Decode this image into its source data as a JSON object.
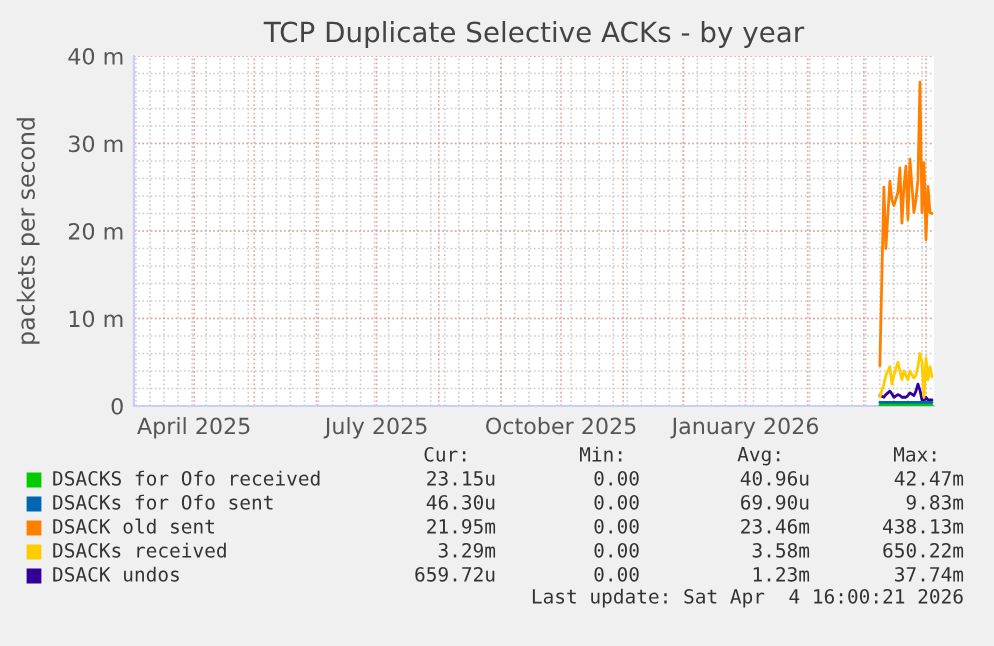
{
  "chart_data": {
    "type": "line",
    "title": "TCP Duplicate Selective ACKs - by year",
    "ylabel": "packets per second",
    "x": [
      "2026-03-09",
      "2026-03-11",
      "2026-03-12",
      "2026-03-14",
      "2026-03-15",
      "2026-03-16",
      "2026-03-18",
      "2026-03-19",
      "2026-03-20",
      "2026-03-21",
      "2026-03-22",
      "2026-03-23",
      "2026-03-24",
      "2026-03-26",
      "2026-03-27",
      "2026-03-28",
      "2026-03-29",
      "2026-03-30",
      "2026-03-31",
      "2026-04-01",
      "2026-04-02",
      "2026-04-03",
      "2026-04-04"
    ],
    "series": [
      {
        "name": "DSACKS for Ofo received",
        "color": "#00cc00",
        "values": [
          0.1,
          0.1,
          0.1,
          0.1,
          0.1,
          0.1,
          0.1,
          0.1,
          0.1,
          0.1,
          0.1,
          0.1,
          0.1,
          0.1,
          0.1,
          0.1,
          0.1,
          0.1,
          0.1,
          0.1,
          0.1,
          0.1,
          0.1
        ]
      },
      {
        "name": "DSACKs for Ofo sent",
        "color": "#0066b3",
        "values": [
          0.4,
          0.4,
          0.4,
          0.4,
          0.4,
          0.4,
          0.4,
          0.4,
          0.4,
          0.4,
          0.4,
          0.4,
          0.4,
          0.4,
          0.4,
          0.4,
          0.4,
          0.4,
          0.4,
          0.4,
          0.4,
          0.4,
          0.4
        ]
      },
      {
        "name": "DSACK old sent",
        "color": "#ff8000",
        "values": [
          4.6,
          25,
          18,
          25.7,
          23.6,
          22.9,
          24.4,
          27.2,
          20.9,
          25.1,
          27.4,
          21.3,
          28.2,
          22.1,
          23.6,
          25.9,
          37,
          22.1,
          27.8,
          19,
          25.1,
          22.1,
          22
        ]
      },
      {
        "name": "DSACKs received",
        "color": "#ffcc00",
        "values": [
          1,
          2.5,
          3.5,
          4.5,
          2.5,
          3.5,
          5,
          4,
          3,
          4,
          3.5,
          3,
          4,
          3.2,
          3.5,
          4.5,
          6,
          5,
          1,
          5.5,
          3,
          4.5,
          3.3
        ]
      },
      {
        "name": "DSACK undos",
        "color": "#330099",
        "values": [
          1.2,
          1,
          1.3,
          1.7,
          1.4,
          1,
          1.3,
          1.2,
          1,
          1,
          1,
          1.2,
          1.5,
          1.2,
          1.7,
          2.5,
          1.8,
          0.7,
          0.6,
          1,
          0.7,
          0.7,
          0.7
        ]
      }
    ],
    "xlim": [
      "2025-03-02",
      "2026-04-05"
    ],
    "xticks": [
      {
        "value": "2025-04-01",
        "label": "April 2025"
      },
      {
        "value": "2025-07-01",
        "label": "July 2025"
      },
      {
        "value": "2025-10-01",
        "label": "October 2025"
      },
      {
        "value": "2026-01-01",
        "label": "January 2026"
      }
    ],
    "ylim": [
      0,
      40
    ],
    "yticks": [
      0,
      {
        "value": 10,
        "label": "10 m"
      },
      {
        "value": 20,
        "label": "20 m"
      },
      {
        "value": 30,
        "label": "30 m"
      },
      {
        "value": 40,
        "label": "40 m"
      }
    ],
    "grid": true,
    "legend": "bottom",
    "annotations": [
      "Cur:",
      "Min:",
      "Avg:",
      "Max:",
      "23.15u",
      "0.00",
      "40.96u",
      "42.47m",
      "46.30u",
      "0.00",
      "69.90u",
      "9.83m",
      "21.95m",
      "0.00",
      "23.46m",
      "438.13m",
      "3.29m",
      "0.00",
      "3.58m",
      "650.22m",
      "659.72u",
      "0.00",
      "1.23m",
      "37.74m",
      "Last update: Sat Apr  4 16:00:21 2026"
    ]
  }
}
